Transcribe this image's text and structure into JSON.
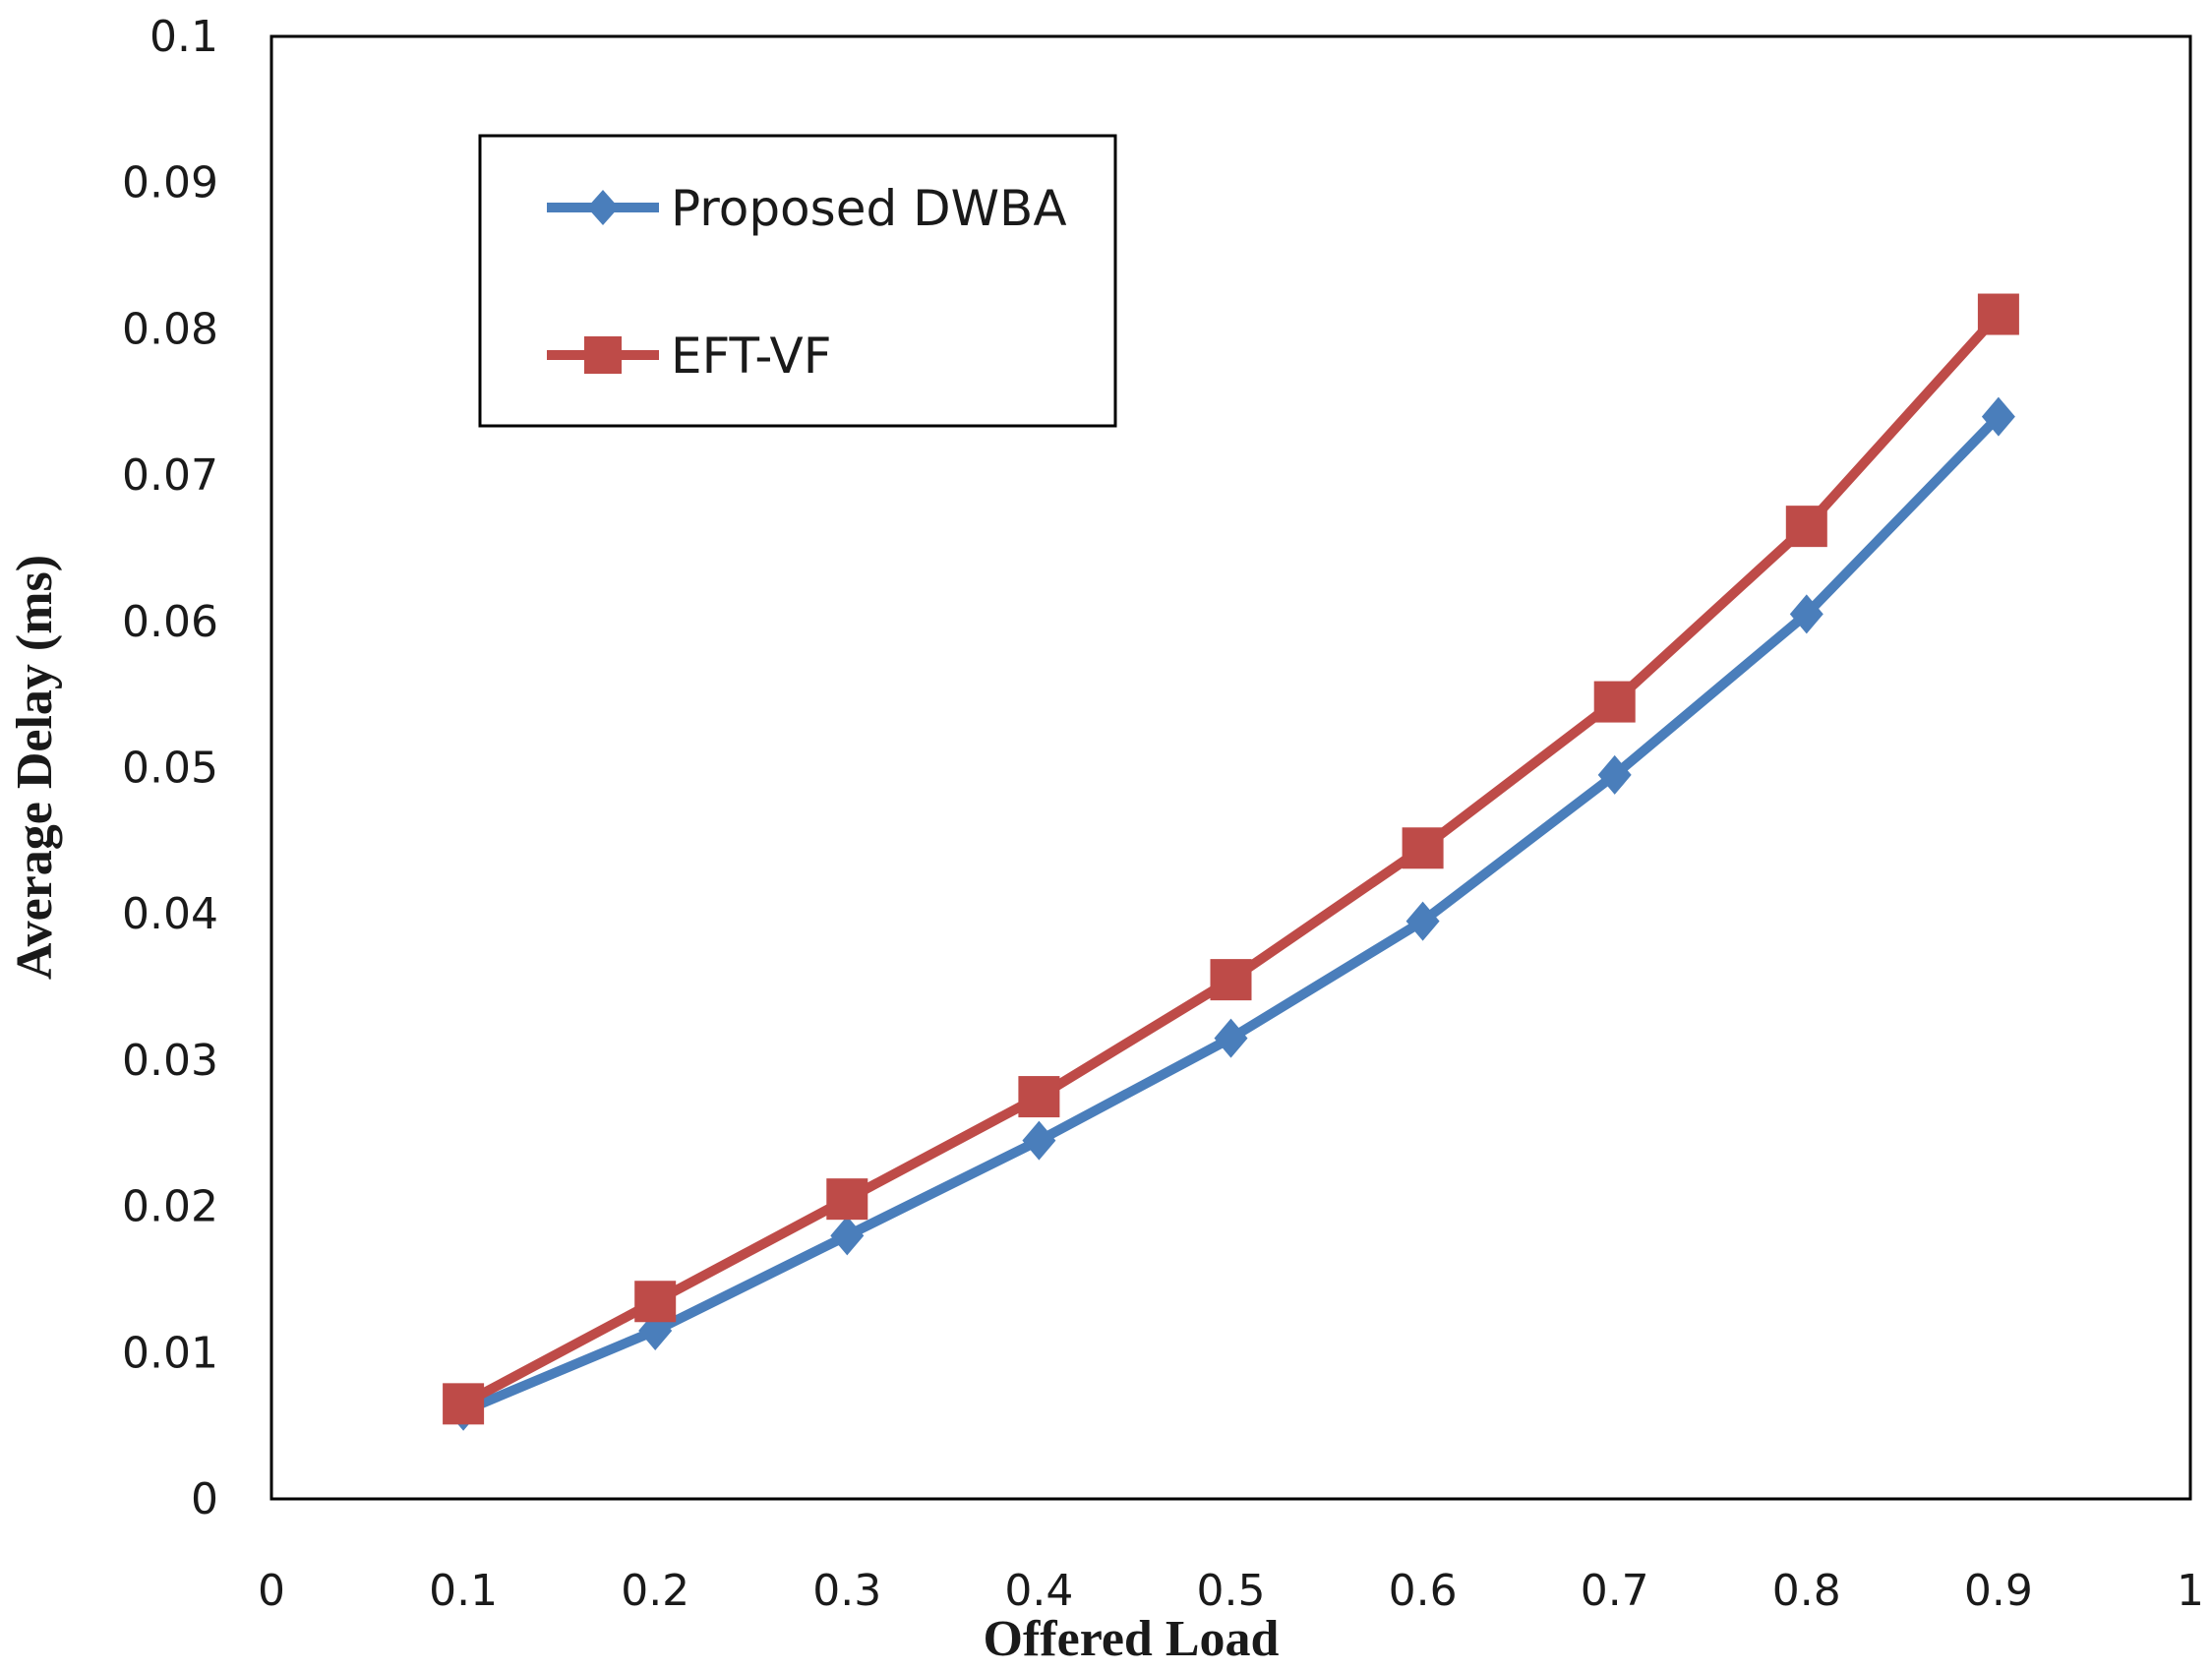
{
  "chart_data": {
    "type": "line",
    "title": "",
    "xlabel": "Offered  Load",
    "ylabel": "Average  Delay  (ms)",
    "xlim": [
      0,
      1
    ],
    "ylim": [
      0,
      0.1
    ],
    "xticks": [
      "0",
      "0.1",
      "0.2",
      "0.3",
      "0.4",
      "0.5",
      "0.6",
      "0.7",
      "0.8",
      "0.9",
      "1"
    ],
    "yticks": [
      "0",
      "0.01",
      "0.02",
      "0.03",
      "0.04",
      "0.05",
      "0.06",
      "0.07",
      "0.08",
      "0.09",
      "0.1"
    ],
    "grid": false,
    "legend_position": "top-left",
    "x": [
      0.1,
      0.2,
      0.3,
      0.4,
      0.5,
      0.6,
      0.7,
      0.8,
      0.9
    ],
    "series": [
      {
        "name": "Proposed DWBA",
        "color": "#4a7ebb",
        "marker": "diamond",
        "values": [
          0.006,
          0.0115,
          0.018,
          0.0245,
          0.0315,
          0.0395,
          0.0495,
          0.0605,
          0.074
        ]
      },
      {
        "name": "EFT-VF",
        "color": "#be4b48",
        "marker": "square",
        "values": [
          0.0065,
          0.0135,
          0.0205,
          0.0275,
          0.0355,
          0.0445,
          0.0545,
          0.0665,
          0.081
        ]
      }
    ]
  }
}
